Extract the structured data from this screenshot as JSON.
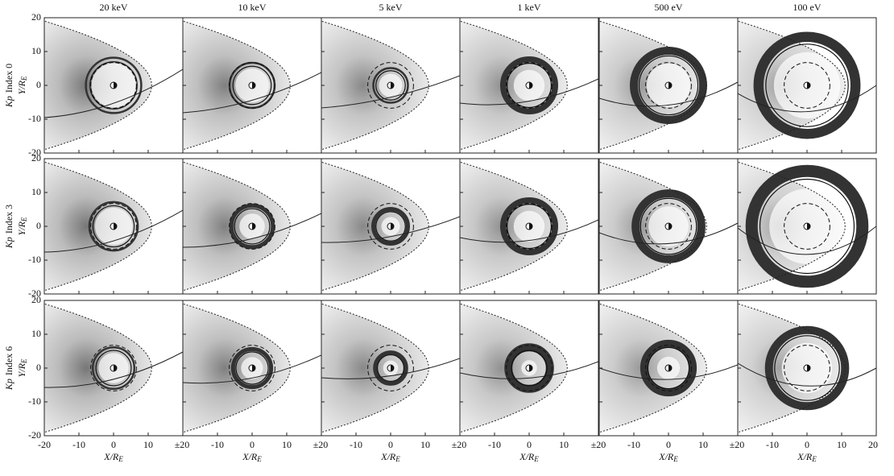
{
  "columns": [
    "20 keV",
    "10 keV",
    "5 keV",
    "1 keV",
    "500 eV",
    "100 eV"
  ],
  "row_prefix": "Kp",
  "rows": [
    "Index 0",
    "Index 3",
    "Index 6"
  ],
  "y_axis": {
    "main": "Y/R",
    "sub": "E"
  },
  "x_axis": {
    "main": "X/R",
    "sub": "E"
  },
  "yticks": [
    20,
    10,
    0,
    -10,
    -20
  ],
  "xticks": [
    -20,
    -10,
    0,
    10
  ],
  "x_edge_label": "±20",
  "x_last_label": "20"
}
